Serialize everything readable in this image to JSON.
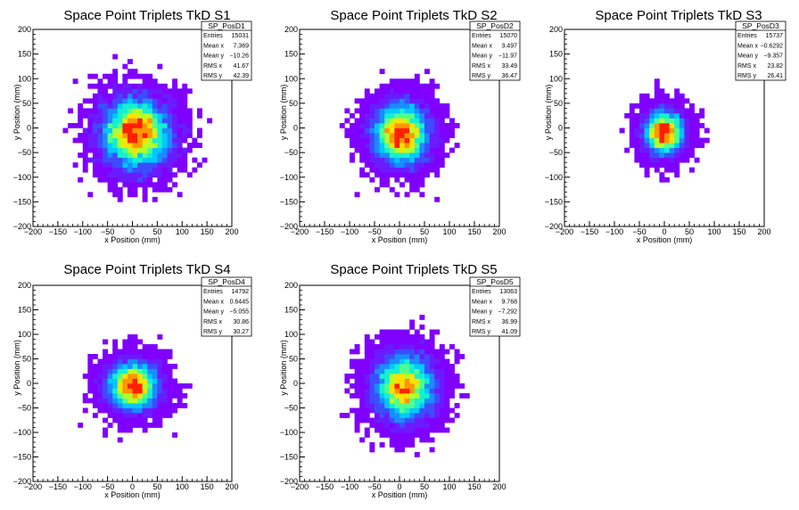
{
  "chart_data": [
    {
      "type": "heatmap",
      "title": "Space Point Triplets TkD S1",
      "xlabel": "x Position (mm)",
      "ylabel": "y Position (mm)",
      "xlim": [
        -200,
        200
      ],
      "ylim": [
        -200,
        200
      ],
      "xticks": [
        "−200",
        "−150",
        "−100",
        "−50",
        "0",
        "50",
        "100",
        "150",
        "200"
      ],
      "yticks": [
        "−200",
        "−150",
        "−100",
        "−50",
        "0",
        "50",
        "100",
        "150",
        "200"
      ],
      "stats": {
        "name": "SP_PosD1",
        "rows": [
          [
            "Entries",
            "15031"
          ],
          [
            "Mean x",
            "7.369"
          ],
          [
            "Mean y",
            "−10.26"
          ],
          [
            "RMS x",
            "41.67"
          ],
          [
            "RMS y",
            "42.39"
          ]
        ]
      },
      "distribution": {
        "center_x": 7,
        "center_y": -10,
        "rms_x": 41.67,
        "rms_y": 42.39,
        "extent": 165
      }
    },
    {
      "type": "heatmap",
      "title": "Space Point Triplets TkD S2",
      "xlabel": "x Position (mm)",
      "ylabel": "y Position (mm)",
      "xlim": [
        -200,
        200
      ],
      "ylim": [
        -200,
        200
      ],
      "xticks": [
        "−200",
        "−150",
        "−100",
        "−50",
        "0",
        "50",
        "100",
        "150",
        "200"
      ],
      "yticks": [
        "−200",
        "−150",
        "−100",
        "−50",
        "0",
        "50",
        "100",
        "150",
        "200"
      ],
      "stats": {
        "name": "SP_PosD2",
        "rows": [
          [
            "Entries",
            "15070"
          ],
          [
            "Mean x",
            "3.497"
          ],
          [
            "Mean y",
            "−11.97"
          ],
          [
            "RMS x",
            "33.49"
          ],
          [
            "RMS y",
            "36.47"
          ]
        ]
      },
      "distribution": {
        "center_x": 3,
        "center_y": -12,
        "rms_x": 33.49,
        "rms_y": 36.47,
        "extent": 160
      }
    },
    {
      "type": "heatmap",
      "title": "Space Point Triplets TkD S3",
      "xlabel": "x Position (mm)",
      "ylabel": "y Position (mm)",
      "xlim": [
        -200,
        200
      ],
      "ylim": [
        -200,
        200
      ],
      "xticks": [
        "−200",
        "−150",
        "−100",
        "−50",
        "0",
        "50",
        "100",
        "150",
        "200"
      ],
      "yticks": [
        "−200",
        "−150",
        "−100",
        "−50",
        "0",
        "50",
        "100",
        "150",
        "200"
      ],
      "stats": {
        "name": "SP_PosD3",
        "rows": [
          [
            "Entries",
            "15737"
          ],
          [
            "Mean x",
            "−0.6292"
          ],
          [
            "Mean y",
            "−9.357"
          ],
          [
            "RMS x",
            "23.82"
          ],
          [
            "RMS y",
            "26.41"
          ]
        ]
      },
      "distribution": {
        "center_x": -1,
        "center_y": -9,
        "rms_x": 23.82,
        "rms_y": 26.41,
        "extent": 155
      }
    },
    {
      "type": "heatmap",
      "title": "Space Point Triplets TkD S4",
      "xlabel": "x Position (mm)",
      "ylabel": "y Position (mm)",
      "xlim": [
        -200,
        200
      ],
      "ylim": [
        -200,
        200
      ],
      "xticks": [
        "−200",
        "−150",
        "−100",
        "−50",
        "0",
        "50",
        "100",
        "150",
        "200"
      ],
      "yticks": [
        "−200",
        "−150",
        "−100",
        "−50",
        "0",
        "50",
        "100",
        "150",
        "200"
      ],
      "stats": {
        "name": "SP_PosD4",
        "rows": [
          [
            "Entries",
            "14792"
          ],
          [
            "Mean x",
            "0.6445"
          ],
          [
            "Mean y",
            "−5.055"
          ],
          [
            "RMS x",
            "30.86"
          ],
          [
            "RMS y",
            "30.27"
          ]
        ]
      },
      "distribution": {
        "center_x": 1,
        "center_y": -5,
        "rms_x": 30.86,
        "rms_y": 30.27,
        "extent": 160
      }
    },
    {
      "type": "heatmap",
      "title": "Space Point Triplets TkD S5",
      "xlabel": "x Position (mm)",
      "ylabel": "y Position (mm)",
      "xlim": [
        -200,
        200
      ],
      "ylim": [
        -200,
        200
      ],
      "xticks": [
        "−200",
        "−150",
        "−100",
        "−50",
        "0",
        "50",
        "100",
        "150",
        "200"
      ],
      "yticks": [
        "−200",
        "−150",
        "−100",
        "−50",
        "0",
        "50",
        "100",
        "150",
        "200"
      ],
      "stats": {
        "name": "SP_PosD5",
        "rows": [
          [
            "Entries",
            "13063"
          ],
          [
            "Mean x",
            "9.768"
          ],
          [
            "Mean y",
            "−7.292"
          ],
          [
            "RMS x",
            "36.99"
          ],
          [
            "RMS y",
            "41.09"
          ]
        ]
      },
      "distribution": {
        "center_x": 10,
        "center_y": -7,
        "rms_x": 36.99,
        "rms_y": 41.09,
        "extent": 160
      }
    }
  ],
  "colors": {
    "palette": [
      "#7f00ff",
      "#6a1bff",
      "#3c4dff",
      "#1a8cff",
      "#00c8ff",
      "#14f0d0",
      "#50ff8c",
      "#b4ff28",
      "#ffe000",
      "#ff9600",
      "#ff2000"
    ]
  }
}
